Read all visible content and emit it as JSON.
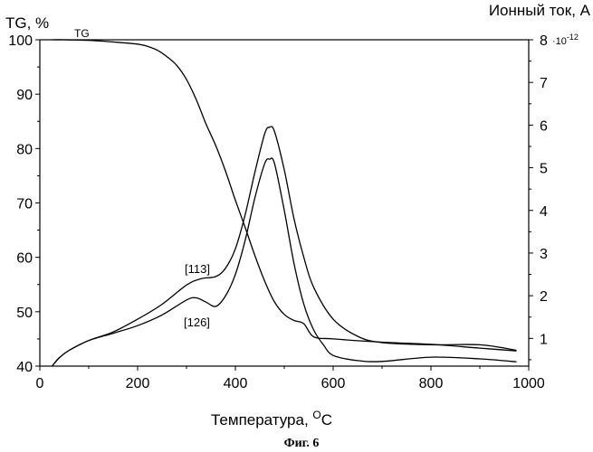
{
  "chart_data": {
    "type": "line",
    "figure_caption": "Фиг. 6",
    "x_axis": {
      "label": "Температура, ",
      "unit_superscript": "O",
      "unit_suffix": "C",
      "range": [
        0,
        1000
      ],
      "ticks": [
        "0",
        "200",
        "400",
        "600",
        "800",
        "1000"
      ]
    },
    "left_axis": {
      "label": "TG, %",
      "range": [
        40,
        100
      ],
      "ticks": [
        "40",
        "50",
        "60",
        "70",
        "80",
        "90",
        "100"
      ]
    },
    "right_axis": {
      "label": "Ионный ток, А",
      "multiplier": "·10",
      "multiplier_exp": "-12",
      "range": [
        0.35,
        8.0
      ],
      "ticks": [
        "1",
        "2",
        "3",
        "4",
        "5",
        "6",
        "7",
        "8"
      ]
    },
    "annotations": {
      "tg": "TG",
      "s113": "[113]",
      "s126": "[126]"
    },
    "series": [
      {
        "name": "TG",
        "axis": "left",
        "x": [
          25,
          50,
          100,
          150,
          200,
          220,
          240,
          260,
          280,
          300,
          320,
          340,
          360,
          380,
          400,
          420,
          440,
          460,
          480,
          500,
          520,
          540,
          560,
          600,
          700,
          800,
          900,
          975
        ],
        "y": [
          100,
          100,
          99.9,
          99.6,
          99.2,
          98.8,
          98.1,
          96.9,
          95.3,
          92.7,
          89.0,
          84.5,
          80.5,
          75.8,
          70.5,
          65.5,
          60.3,
          55.6,
          51.8,
          49.5,
          48.4,
          47.8,
          45.4,
          45.0,
          44.4,
          44.0,
          43.3,
          42.8
        ]
      },
      {
        "name": "[113]",
        "axis": "right",
        "x": [
          25,
          40,
          60,
          100,
          150,
          200,
          250,
          300,
          330,
          360,
          380,
          400,
          420,
          440,
          460,
          470,
          480,
          500,
          520,
          540,
          560,
          600,
          650,
          700,
          800,
          900,
          975
        ],
        "y": [
          0.35,
          0.55,
          0.72,
          0.95,
          1.15,
          1.45,
          1.8,
          2.25,
          2.4,
          2.45,
          2.65,
          3.1,
          3.9,
          4.9,
          5.8,
          5.95,
          5.85,
          4.95,
          3.8,
          2.9,
          2.2,
          1.45,
          1.05,
          0.9,
          0.85,
          0.85,
          0.72
        ]
      },
      {
        "name": "[126]",
        "axis": "right",
        "x": [
          25,
          40,
          60,
          100,
          150,
          200,
          250,
          300,
          320,
          340,
          360,
          380,
          400,
          420,
          440,
          460,
          470,
          480,
          500,
          520,
          540,
          560,
          580,
          600,
          650,
          700,
          800,
          900,
          975
        ],
        "y": [
          0.35,
          0.55,
          0.72,
          0.95,
          1.12,
          1.3,
          1.55,
          1.9,
          1.95,
          1.85,
          1.75,
          2.0,
          2.5,
          3.3,
          4.3,
          5.1,
          5.2,
          5.1,
          4.0,
          2.75,
          1.8,
          1.2,
          0.85,
          0.6,
          0.48,
          0.46,
          0.56,
          0.52,
          0.45
        ]
      }
    ]
  }
}
